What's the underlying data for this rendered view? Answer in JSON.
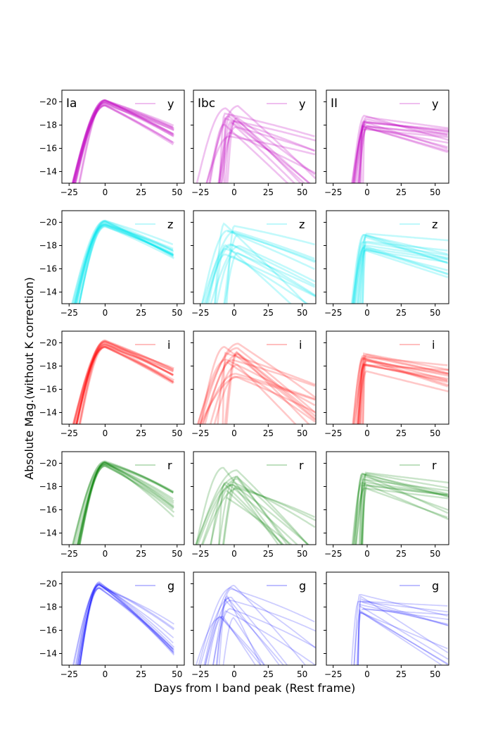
{
  "figure": {
    "xlabel": "Days from I band peak (Rest frame)",
    "ylabel": "Absolute Mag.(without K correction)"
  },
  "chart_data": {
    "type": "line",
    "note": "Grid of light-curve panels; each panel holds many semi-transparent template light curves. Curves are approximate families read from the figure.",
    "ylim": [
      -13,
      -21
    ],
    "yticks": [
      -20,
      -18,
      -16,
      -14
    ],
    "columns": [
      {
        "type": "Ia",
        "xlim": [
          -30,
          55
        ],
        "xticks": [
          -25,
          0,
          25,
          50
        ],
        "rise": [
          -24,
          -18
        ],
        "peak_mag": [
          -19.6,
          -20.2
        ],
        "decline": [
          0.035,
          0.065
        ],
        "end": 48,
        "curvature": 0.012,
        "count": 14
      },
      {
        "type": "Ibc",
        "xlim": [
          -30,
          60
        ],
        "xticks": [
          -25,
          0,
          25,
          50
        ],
        "rise": [
          -30,
          -5
        ],
        "peak_mag": [
          -17.0,
          -20.0
        ],
        "decline": [
          0.02,
          0.12
        ],
        "end": 60,
        "curvature": 0.006,
        "count": 14
      },
      {
        "type": "II",
        "xlim": [
          -30,
          60
        ],
        "xticks": [
          -25,
          0,
          25,
          50
        ],
        "rise": [
          -12,
          -3
        ],
        "peak_mag": [
          -17.5,
          -19.2
        ],
        "decline": [
          0.005,
          0.04
        ],
        "end": 60,
        "curvature": 0.05,
        "count": 14
      }
    ],
    "rows": [
      {
        "band": "y",
        "color": "#bf00bf",
        "lw": 2.6,
        "opacity": 0.17
      },
      {
        "band": "z",
        "color": "#00e5ee",
        "lw": 2.6,
        "opacity": 0.17
      },
      {
        "band": "i",
        "color": "#ff0000",
        "lw": 2.6,
        "opacity": 0.15
      },
      {
        "band": "r",
        "color": "#008000",
        "lw": 2.4,
        "opacity": 0.15
      },
      {
        "band": "g",
        "color": "#0000ff",
        "lw": 1.8,
        "opacity": 0.14
      }
    ]
  }
}
